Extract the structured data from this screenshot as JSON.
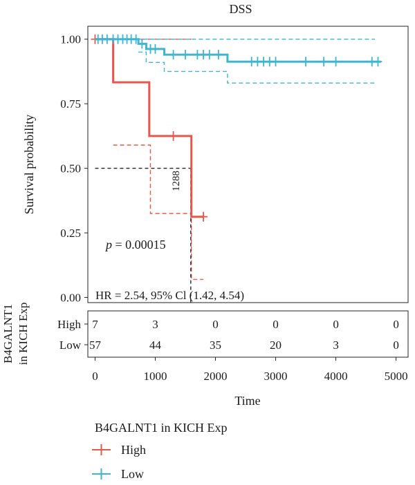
{
  "chart_data": {
    "type": "line",
    "title": "DSS",
    "xlabel": "Time",
    "ylabel": "Survival probability",
    "xlim": [
      -120,
      5200
    ],
    "ylim": [
      -0.02,
      1.05
    ],
    "x_ticks": [
      0,
      1000,
      2000,
      3000,
      4000,
      5000
    ],
    "y_ticks": [
      "0.00",
      "0.25",
      "0.50",
      "0.75",
      "1.00"
    ],
    "legend_title": "B4GALNT1 in KICH Exp",
    "series": [
      {
        "name": "High",
        "color": "#e8584a",
        "steps": [
          [
            0,
            1.0
          ],
          [
            300,
            1.0
          ],
          [
            300,
            0.833
          ],
          [
            900,
            0.833
          ],
          [
            900,
            0.625
          ],
          [
            1600,
            0.625
          ],
          [
            1600,
            0.3125
          ],
          [
            1800,
            0.3125
          ]
        ],
        "censor": [
          [
            0,
            1.0
          ],
          [
            1300,
            0.625
          ],
          [
            1800,
            0.3125
          ]
        ],
        "ci_upper": [
          [
            300,
            1.0
          ],
          [
            900,
            1.0
          ],
          [
            900,
            1.0
          ],
          [
            1600,
            1.0
          ]
        ],
        "ci_lower": [
          [
            300,
            0.59
          ],
          [
            920,
            0.59
          ],
          [
            920,
            0.325
          ],
          [
            1600,
            0.325
          ],
          [
            1600,
            0.07
          ],
          [
            1800,
            0.07
          ]
        ]
      },
      {
        "name": "Low",
        "color": "#3db6d0",
        "steps": [
          [
            0,
            1.0
          ],
          [
            720,
            1.0
          ],
          [
            720,
            0.982
          ],
          [
            850,
            0.982
          ],
          [
            850,
            0.962
          ],
          [
            1150,
            0.962
          ],
          [
            1150,
            0.94
          ],
          [
            2200,
            0.94
          ],
          [
            2200,
            0.913
          ],
          [
            4750,
            0.913
          ]
        ],
        "censor": [
          [
            50,
            1.0
          ],
          [
            120,
            1.0
          ],
          [
            200,
            1.0
          ],
          [
            300,
            1.0
          ],
          [
            380,
            1.0
          ],
          [
            460,
            1.0
          ],
          [
            530,
            1.0
          ],
          [
            600,
            1.0
          ],
          [
            680,
            1.0
          ],
          [
            780,
            0.982
          ],
          [
            920,
            0.962
          ],
          [
            1000,
            0.962
          ],
          [
            1300,
            0.94
          ],
          [
            1500,
            0.94
          ],
          [
            1700,
            0.94
          ],
          [
            1800,
            0.94
          ],
          [
            1900,
            0.94
          ],
          [
            2050,
            0.94
          ],
          [
            2600,
            0.913
          ],
          [
            2700,
            0.913
          ],
          [
            2800,
            0.913
          ],
          [
            2900,
            0.913
          ],
          [
            3000,
            0.913
          ],
          [
            3500,
            0.913
          ],
          [
            3800,
            0.913
          ],
          [
            4000,
            0.913
          ],
          [
            4600,
            0.913
          ],
          [
            4700,
            0.913
          ]
        ],
        "ci_upper": [
          [
            0,
            1.0
          ],
          [
            4650,
            1.0
          ]
        ],
        "ci_lower": [
          [
            720,
            0.95
          ],
          [
            850,
            0.95
          ],
          [
            850,
            0.91
          ],
          [
            1150,
            0.91
          ],
          [
            1150,
            0.875
          ],
          [
            2200,
            0.875
          ],
          [
            2200,
            0.83
          ],
          [
            4650,
            0.83
          ]
        ]
      }
    ],
    "median_line": {
      "y": 0.5,
      "x": 1590,
      "label": "1288"
    },
    "annotations": {
      "p_label": "p",
      "p_value": " = 0.00015",
      "hr": "HR = 2.54, 95% Cl (1.42, 4.54)"
    },
    "risk_table": {
      "ylabel_line1": "B4GALNT1",
      "ylabel_line2": "in KICH Exp",
      "times": [
        0,
        1000,
        2000,
        3000,
        4000,
        5000
      ],
      "rows": [
        {
          "label": "High",
          "counts": [
            "7",
            "3",
            "0",
            "0",
            "0",
            "0"
          ]
        },
        {
          "label": "Low",
          "counts": [
            "57",
            "44",
            "35",
            "20",
            "3",
            "0"
          ]
        }
      ]
    }
  }
}
